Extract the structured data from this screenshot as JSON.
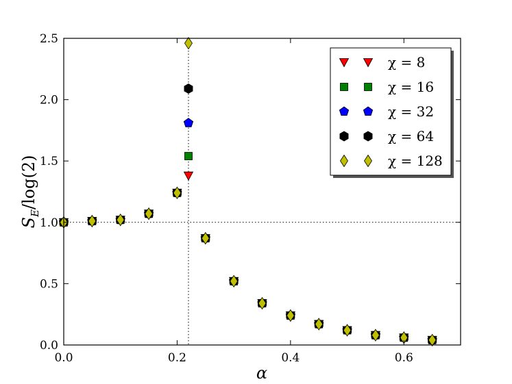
{
  "chart_data": {
    "type": "scatter",
    "xlabel": "α",
    "ylabel": "S_E/log(2)",
    "xlim": [
      0.0,
      0.7
    ],
    "ylim": [
      0.0,
      2.5
    ],
    "xticks": [
      "0.0",
      "0.2",
      "0.4",
      "0.6"
    ],
    "xtick_values": [
      0.0,
      0.2,
      0.4,
      0.6
    ],
    "yticks": [
      "0.0",
      "0.5",
      "1.0",
      "1.5",
      "2.0",
      "2.5"
    ],
    "ytick_values": [
      0.0,
      0.5,
      1.0,
      1.5,
      2.0,
      2.5
    ],
    "grid": false,
    "legend_position": "top-right",
    "reference_lines": [
      {
        "orientation": "horizontal",
        "value": 1.0,
        "style": "dotted"
      },
      {
        "orientation": "vertical",
        "value": 0.22,
        "style": "dotted"
      }
    ],
    "series": [
      {
        "name": "χ = 8",
        "marker": "triangle-down",
        "color": "#ff0000",
        "x": [
          0.0,
          0.05,
          0.1,
          0.15,
          0.2,
          0.22,
          0.25,
          0.3,
          0.35,
          0.4,
          0.45,
          0.5,
          0.55,
          0.6,
          0.65
        ],
        "y": [
          1.0,
          1.01,
          1.02,
          1.07,
          1.24,
          1.38,
          0.87,
          0.52,
          0.34,
          0.24,
          0.17,
          0.12,
          0.08,
          0.06,
          0.04
        ]
      },
      {
        "name": "χ = 16",
        "marker": "square",
        "color": "#008000",
        "x": [
          0.0,
          0.05,
          0.1,
          0.15,
          0.2,
          0.22,
          0.25,
          0.3,
          0.35,
          0.4,
          0.45,
          0.5,
          0.55,
          0.6,
          0.65
        ],
        "y": [
          1.0,
          1.01,
          1.02,
          1.07,
          1.24,
          1.54,
          0.87,
          0.52,
          0.34,
          0.24,
          0.17,
          0.12,
          0.08,
          0.06,
          0.04
        ]
      },
      {
        "name": "χ = 32",
        "marker": "pentagon",
        "color": "#0000ff",
        "x": [
          0.0,
          0.05,
          0.1,
          0.15,
          0.2,
          0.22,
          0.25,
          0.3,
          0.35,
          0.4,
          0.45,
          0.5,
          0.55,
          0.6,
          0.65
        ],
        "y": [
          1.0,
          1.01,
          1.02,
          1.07,
          1.24,
          1.81,
          0.87,
          0.52,
          0.34,
          0.24,
          0.17,
          0.12,
          0.08,
          0.06,
          0.04
        ]
      },
      {
        "name": "χ = 64",
        "marker": "hexagon",
        "color": "#000000",
        "x": [
          0.0,
          0.05,
          0.1,
          0.15,
          0.2,
          0.22,
          0.25,
          0.3,
          0.35,
          0.4,
          0.45,
          0.5,
          0.55,
          0.6,
          0.65
        ],
        "y": [
          1.0,
          1.01,
          1.02,
          1.07,
          1.24,
          2.09,
          0.87,
          0.52,
          0.34,
          0.24,
          0.17,
          0.12,
          0.08,
          0.06,
          0.04
        ]
      },
      {
        "name": "χ = 128",
        "marker": "diamond",
        "color": "#bfbf00",
        "x": [
          0.0,
          0.05,
          0.1,
          0.15,
          0.2,
          0.22,
          0.25,
          0.3,
          0.35,
          0.4,
          0.45,
          0.5,
          0.55,
          0.6,
          0.65
        ],
        "y": [
          1.0,
          1.01,
          1.02,
          1.07,
          1.24,
          2.46,
          0.87,
          0.52,
          0.34,
          0.24,
          0.17,
          0.12,
          0.08,
          0.06,
          0.04
        ]
      }
    ]
  }
}
